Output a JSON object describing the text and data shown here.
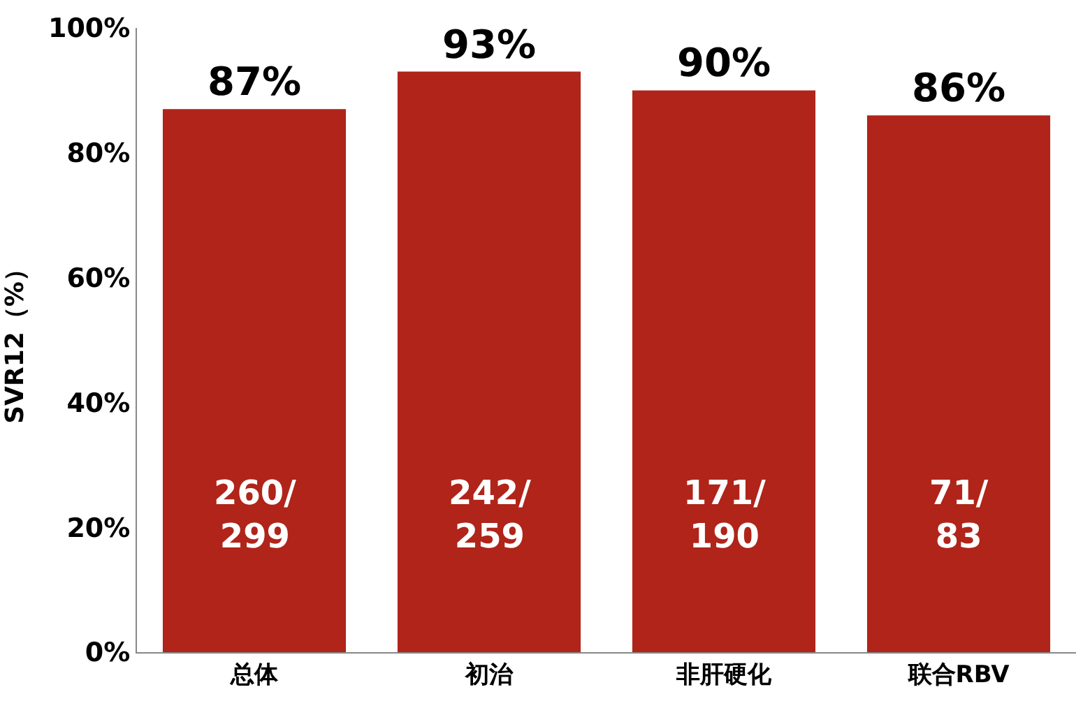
{
  "chart_data": {
    "type": "bar",
    "ylabel": "SVR12（%）",
    "categories": [
      "总体",
      "初治",
      "非肝硬化",
      "联合RBV"
    ],
    "values": [
      87,
      93,
      90,
      86
    ],
    "color": "#b0241a",
    "value_labels": [
      "87%",
      "93%",
      "90%",
      "86%"
    ],
    "annotations": [
      "260/\n299",
      "242/\n259",
      "171/\n190",
      "71/\n83"
    ],
    "ylim": [
      0,
      100
    ],
    "yticks": [
      {
        "value": 0,
        "label": "0%"
      },
      {
        "value": 20,
        "label": "20%"
      },
      {
        "value": 40,
        "label": "40%"
      },
      {
        "value": 60,
        "label": "60%"
      },
      {
        "value": 80,
        "label": "80%"
      },
      {
        "value": 100,
        "label": "100%"
      }
    ]
  }
}
